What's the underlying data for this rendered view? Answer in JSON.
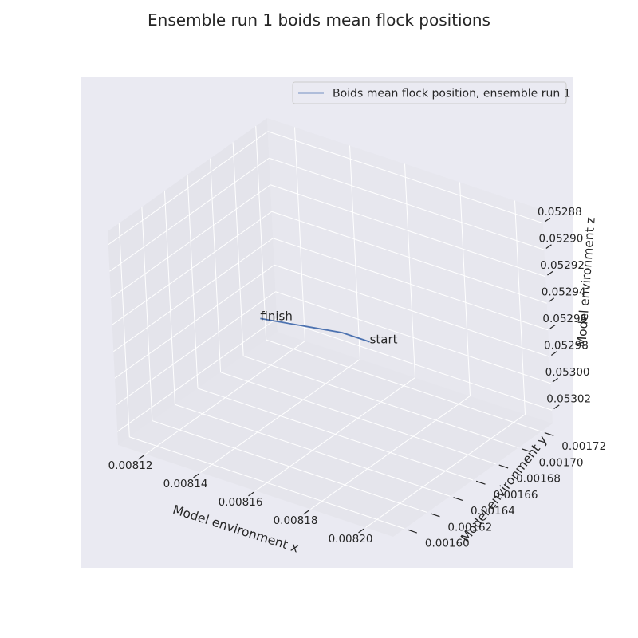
{
  "chart_data": {
    "type": "line",
    "projection": "3d",
    "title": "Ensemble run 1 boids mean flock positions",
    "xlabel": "Model environment x",
    "ylabel": "Model environment y",
    "zlabel": "Model environment z",
    "x_ticks": [
      "0.00812",
      "0.00814",
      "0.00816",
      "0.00818",
      "0.00820"
    ],
    "y_ticks": [
      "0.00160",
      "0.00162",
      "0.00164",
      "0.00166",
      "0.00168",
      "0.00170",
      "0.00172"
    ],
    "z_ticks": [
      "0.05288",
      "0.05290",
      "0.05292",
      "0.05294",
      "0.05296",
      "0.05298",
      "0.05300",
      "0.05302"
    ],
    "xlim": [
      0.00811,
      0.00821
    ],
    "ylim": [
      0.00159,
      0.00173
    ],
    "zlim": [
      0.05287,
      0.05303
    ],
    "z_inverted": true,
    "grid": true,
    "legend_position": "top-right",
    "series": [
      {
        "name": "Boids mean flock position, ensemble run 1",
        "color": "#4c72b0",
        "points": [
          {
            "x": 0.00817,
            "y": 0.00167,
            "z": 0.05296
          },
          {
            "x": 0.00816,
            "y": 0.00167,
            "z": 0.05296
          },
          {
            "x": 0.00813,
            "y": 0.00167,
            "z": 0.05297
          }
        ]
      }
    ],
    "annotations": [
      {
        "text": "start",
        "point": 0
      },
      {
        "text": "finish",
        "point": 2
      }
    ],
    "colors": {
      "axes_bg": "#eaeaf2",
      "pane": "#e5e5ec",
      "grid": "#ffffff",
      "text": "#262626"
    }
  }
}
